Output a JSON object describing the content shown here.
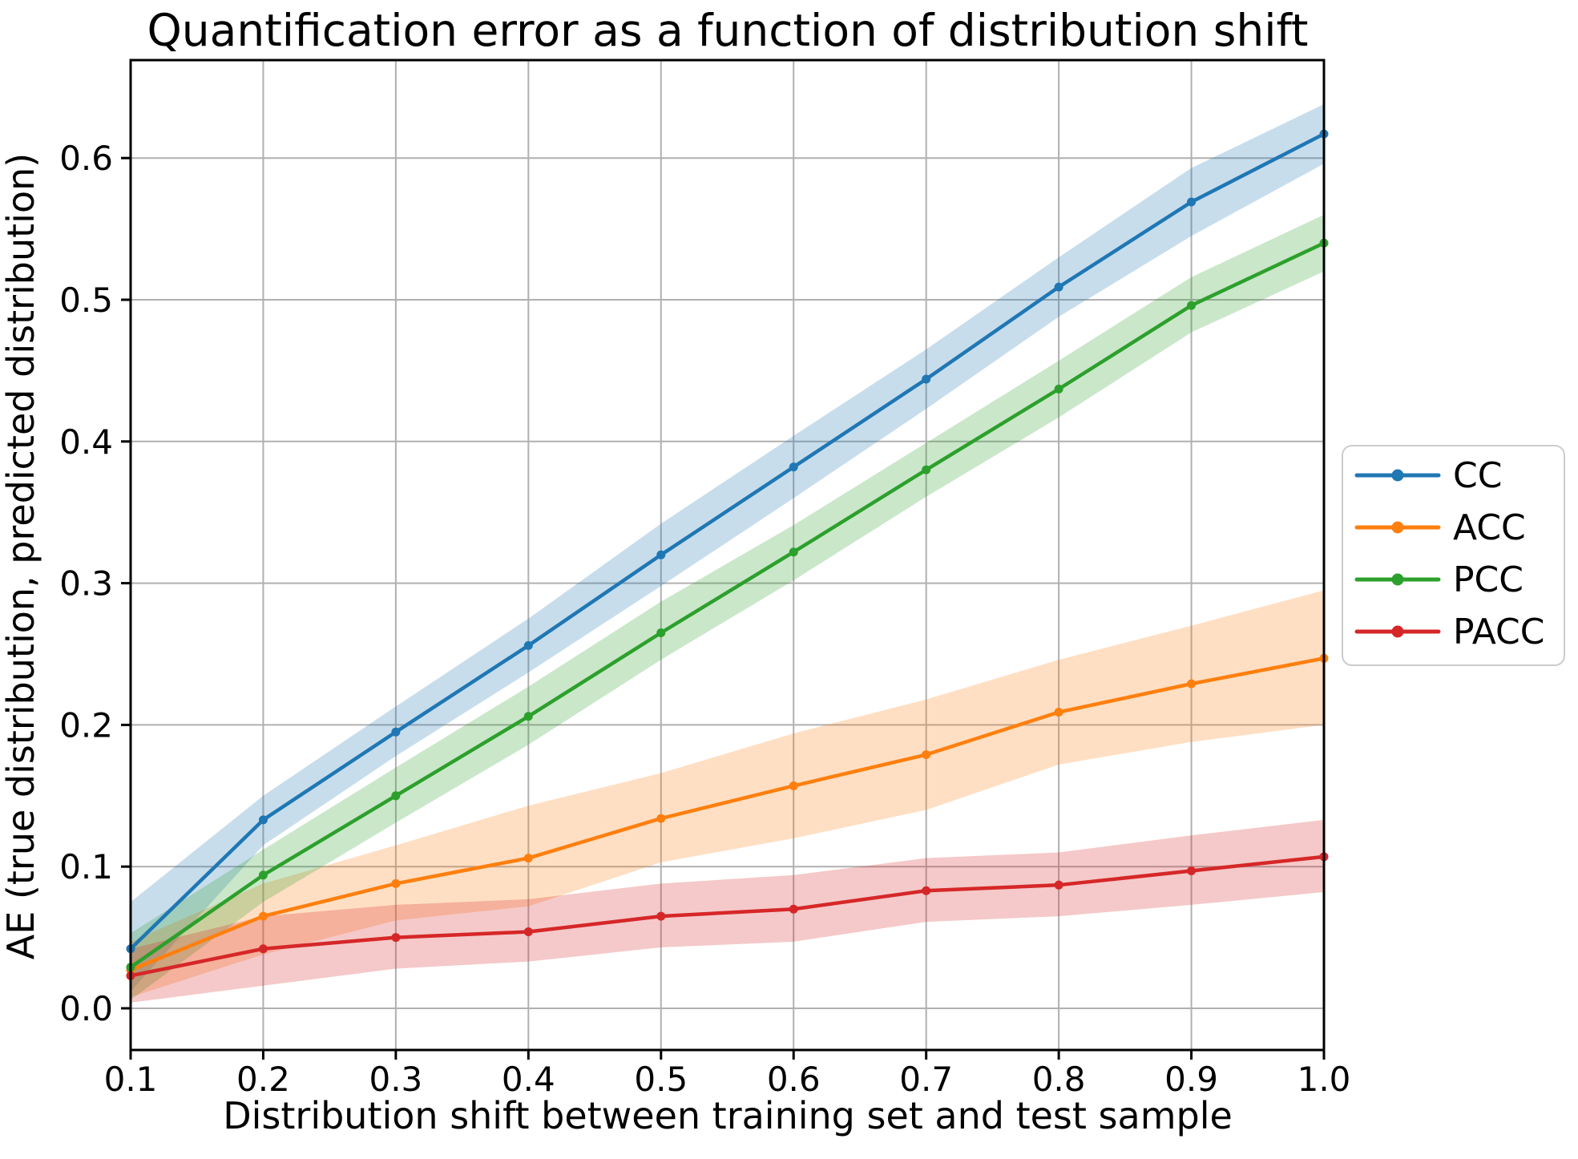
{
  "title": "Quantification error as a function of distribution shift",
  "chart_data": {
    "type": "line",
    "title": "Quantification error as a function of distribution shift",
    "xlabel": "Distribution shift between training set and test sample",
    "ylabel": "AE (true distribution, predicted distribution)",
    "x": [
      0.1,
      0.2,
      0.3,
      0.4,
      0.5,
      0.6,
      0.7,
      0.8,
      0.9,
      1.0
    ],
    "x_tick_labels": [
      "0.1",
      "0.2",
      "0.3",
      "0.4",
      "0.5",
      "0.6",
      "0.7",
      "0.8",
      "0.9",
      "1.0"
    ],
    "y_ticks": [
      0.0,
      0.1,
      0.2,
      0.3,
      0.4,
      0.5,
      0.6
    ],
    "y_tick_labels": [
      "0.0",
      "0.1",
      "0.2",
      "0.3",
      "0.4",
      "0.5",
      "0.6"
    ],
    "xlim": [
      0.1,
      1.0
    ],
    "ylim": [
      -0.029,
      0.669
    ],
    "grid": true,
    "legend_position": "center right outside",
    "band_opacity": 0.25,
    "series": [
      {
        "name": "CC",
        "color": "#1f77b4",
        "values": [
          0.042,
          0.133,
          0.195,
          0.256,
          0.32,
          0.382,
          0.444,
          0.509,
          0.569,
          0.617
        ],
        "lower": [
          0.012,
          0.115,
          0.178,
          0.237,
          0.298,
          0.36,
          0.423,
          0.488,
          0.545,
          0.596
        ],
        "upper": [
          0.075,
          0.15,
          0.213,
          0.275,
          0.342,
          0.404,
          0.465,
          0.53,
          0.593,
          0.638
        ]
      },
      {
        "name": "ACC",
        "color": "#ff7f0e",
        "values": [
          0.027,
          0.065,
          0.088,
          0.106,
          0.134,
          0.157,
          0.179,
          0.209,
          0.229,
          0.247
        ],
        "lower": [
          0.008,
          0.038,
          0.062,
          0.072,
          0.103,
          0.12,
          0.14,
          0.172,
          0.188,
          0.2
        ],
        "upper": [
          0.047,
          0.088,
          0.115,
          0.143,
          0.166,
          0.194,
          0.218,
          0.246,
          0.27,
          0.295
        ]
      },
      {
        "name": "PCC",
        "color": "#2ca02c",
        "values": [
          0.029,
          0.094,
          0.15,
          0.206,
          0.265,
          0.322,
          0.38,
          0.437,
          0.496,
          0.54
        ],
        "lower": [
          0.006,
          0.075,
          0.131,
          0.186,
          0.246,
          0.302,
          0.361,
          0.417,
          0.477,
          0.52
        ],
        "upper": [
          0.053,
          0.112,
          0.17,
          0.227,
          0.287,
          0.341,
          0.399,
          0.457,
          0.516,
          0.56
        ]
      },
      {
        "name": "PACC",
        "color": "#d62728",
        "values": [
          0.023,
          0.042,
          0.05,
          0.054,
          0.065,
          0.07,
          0.083,
          0.087,
          0.097,
          0.107
        ],
        "lower": [
          0.004,
          0.016,
          0.028,
          0.033,
          0.043,
          0.047,
          0.061,
          0.065,
          0.073,
          0.082
        ],
        "upper": [
          0.042,
          0.065,
          0.073,
          0.077,
          0.088,
          0.094,
          0.106,
          0.11,
          0.122,
          0.133
        ]
      }
    ]
  },
  "colors": {
    "background": "#ffffff",
    "grid": "#b0b0b0",
    "spine": "#000000",
    "legend_border": "#cccccc",
    "legend_fill": "#ffffff"
  }
}
